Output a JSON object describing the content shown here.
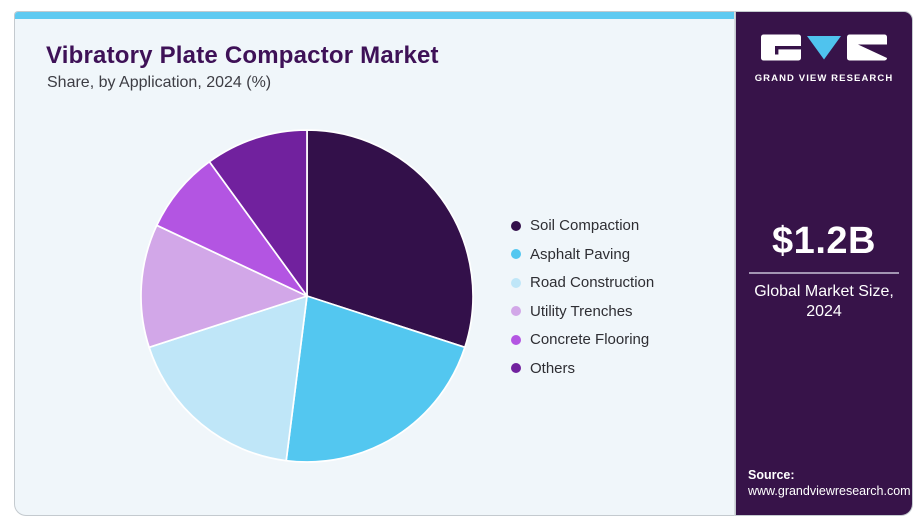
{
  "header": {
    "title": "Vibratory Plate Compactor Market",
    "subtitle": "Share, by Application, 2024 (%)"
  },
  "chart_data": {
    "type": "pie",
    "title": "Vibratory Plate Compactor Market Share, by Application, 2024 (%)",
    "unit": "%",
    "start_angle_deg": 0,
    "direction": "clockwise",
    "legend_position": "right",
    "slices": [
      {
        "label": "Soil Compaction",
        "value": 30,
        "color": "#33104a"
      },
      {
        "label": "Asphalt Paving",
        "value": 22,
        "color": "#53c7f0"
      },
      {
        "label": "Road Construction",
        "value": 18,
        "color": "#bfe6f8"
      },
      {
        "label": "Utility Trenches",
        "value": 12,
        "color": "#d2a7e8"
      },
      {
        "label": "Concrete Flooring",
        "value": 8,
        "color": "#b355e2"
      },
      {
        "label": "Others",
        "value": 10,
        "color": "#71219e"
      }
    ]
  },
  "sidebar": {
    "brand": "GRAND VIEW RESEARCH",
    "market_size": "$1.2B",
    "market_size_label": "Global Market Size, 2024",
    "source_label": "Source:",
    "source_url": "www.grandviewresearch.com"
  },
  "colors": {
    "accent_cyan": "#5fcaf1",
    "sidebar_bg": "#371349",
    "card_bg": "#f0f6fa",
    "title_color": "#3e1157",
    "logo_triangle": "#4fc3ee"
  }
}
